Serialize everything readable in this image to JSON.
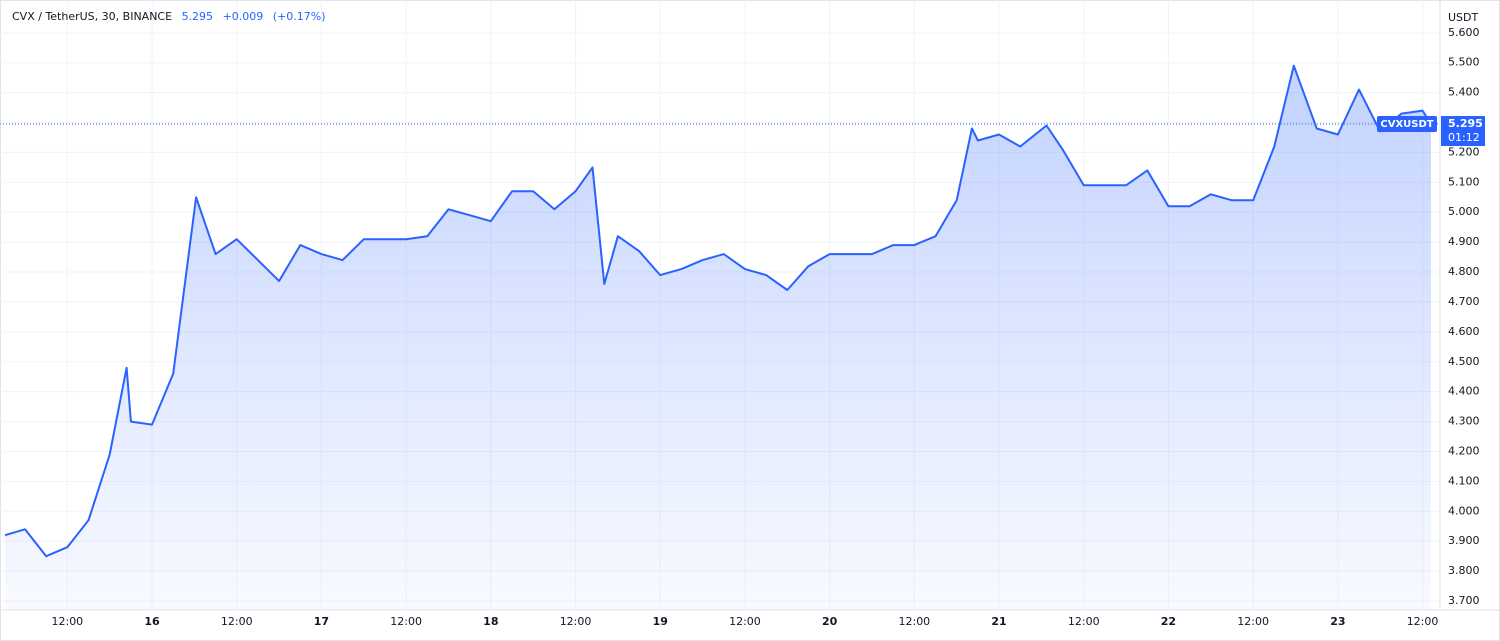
{
  "chart_data": {
    "type": "area",
    "title": "CVX / TetherUS, 30, BINANCE",
    "price": "5.295",
    "change": "+0.009",
    "change_pct": "(+0.17%)",
    "axis_unit": "USDT",
    "symbol": "CVXUSDT",
    "countdown": "01:12",
    "last_value": 5.295,
    "last_value_label": "5.295",
    "color": "#2962ff",
    "grid": true,
    "xlim": [
      15.132,
      23.603
    ],
    "ylim": [
      3.67,
      5.693
    ],
    "xticks": [
      {
        "value": 15.5,
        "label": "12:00"
      },
      16,
      {
        "value": 16.5,
        "label": "12:00"
      },
      17,
      {
        "value": 17.5,
        "label": "12:00"
      },
      18,
      {
        "value": 18.5,
        "label": "12:00"
      },
      19,
      {
        "value": 19.5,
        "label": "12:00"
      },
      20,
      {
        "value": 20.5,
        "label": "12:00"
      },
      21,
      {
        "value": 21.5,
        "label": "12:00"
      },
      22,
      {
        "value": 22.5,
        "label": "12:00"
      },
      23,
      {
        "value": 23.5,
        "label": "12:00"
      }
    ],
    "yticks": [
      {
        "value": 3.7,
        "label": "3.700"
      },
      {
        "value": 3.8,
        "label": "3.800"
      },
      {
        "value": 3.9,
        "label": "3.900"
      },
      {
        "value": 4.0,
        "label": "4.000"
      },
      {
        "value": 4.1,
        "label": "4.100"
      },
      {
        "value": 4.2,
        "label": "4.200"
      },
      {
        "value": 4.3,
        "label": "4.300"
      },
      {
        "value": 4.4,
        "label": "4.400"
      },
      {
        "value": 4.5,
        "label": "4.500"
      },
      {
        "value": 4.6,
        "label": "4.600"
      },
      {
        "value": 4.7,
        "label": "4.700"
      },
      {
        "value": 4.8,
        "label": "4.800"
      },
      {
        "value": 4.9,
        "label": "4.900"
      },
      {
        "value": 5.0,
        "label": "5.000"
      },
      {
        "value": 5.1,
        "label": "5.100"
      },
      {
        "value": 5.2,
        "label": "5.200"
      },
      {
        "value": 5.3,
        "label": "5.300"
      },
      {
        "value": 5.4,
        "label": "5.400"
      },
      {
        "value": 5.5,
        "label": "5.500"
      },
      {
        "value": 5.6,
        "label": "5.600"
      }
    ],
    "x": [
      15.132,
      15.25,
      15.375,
      15.5,
      15.625,
      15.75,
      15.85,
      15.875,
      16.0,
      16.125,
      16.26,
      16.375,
      16.5,
      16.625,
      16.75,
      16.875,
      17.0,
      17.125,
      17.25,
      17.375,
      17.5,
      17.625,
      17.75,
      17.875,
      18.0,
      18.125,
      18.25,
      18.375,
      18.5,
      18.6,
      18.67,
      18.75,
      18.875,
      19.0,
      19.125,
      19.25,
      19.375,
      19.5,
      19.625,
      19.75,
      19.875,
      20.0,
      20.125,
      20.25,
      20.375,
      20.5,
      20.625,
      20.75,
      20.84,
      20.875,
      21.0,
      21.125,
      21.28,
      21.375,
      21.5,
      21.625,
      21.75,
      21.875,
      22.0,
      22.125,
      22.25,
      22.375,
      22.5,
      22.625,
      22.74,
      22.875,
      23.0,
      23.125,
      23.25,
      23.375,
      23.5,
      23.55
    ],
    "values": [
      3.92,
      3.94,
      3.85,
      3.88,
      3.97,
      4.19,
      4.48,
      4.3,
      4.29,
      4.46,
      5.05,
      4.86,
      4.91,
      4.84,
      4.77,
      4.89,
      4.86,
      4.84,
      4.91,
      4.91,
      4.91,
      4.92,
      5.01,
      4.99,
      4.97,
      5.07,
      5.07,
      5.01,
      5.07,
      5.15,
      4.76,
      4.92,
      4.87,
      4.79,
      4.81,
      4.84,
      4.86,
      4.81,
      4.79,
      4.74,
      4.82,
      4.86,
      4.86,
      4.86,
      4.89,
      4.89,
      4.92,
      5.04,
      5.28,
      5.24,
      5.26,
      5.22,
      5.29,
      5.21,
      5.09,
      5.09,
      5.09,
      5.14,
      5.02,
      5.02,
      5.06,
      5.04,
      5.04,
      5.22,
      5.49,
      5.28,
      5.26,
      5.41,
      5.27,
      5.33,
      5.34,
      5.295
    ]
  }
}
